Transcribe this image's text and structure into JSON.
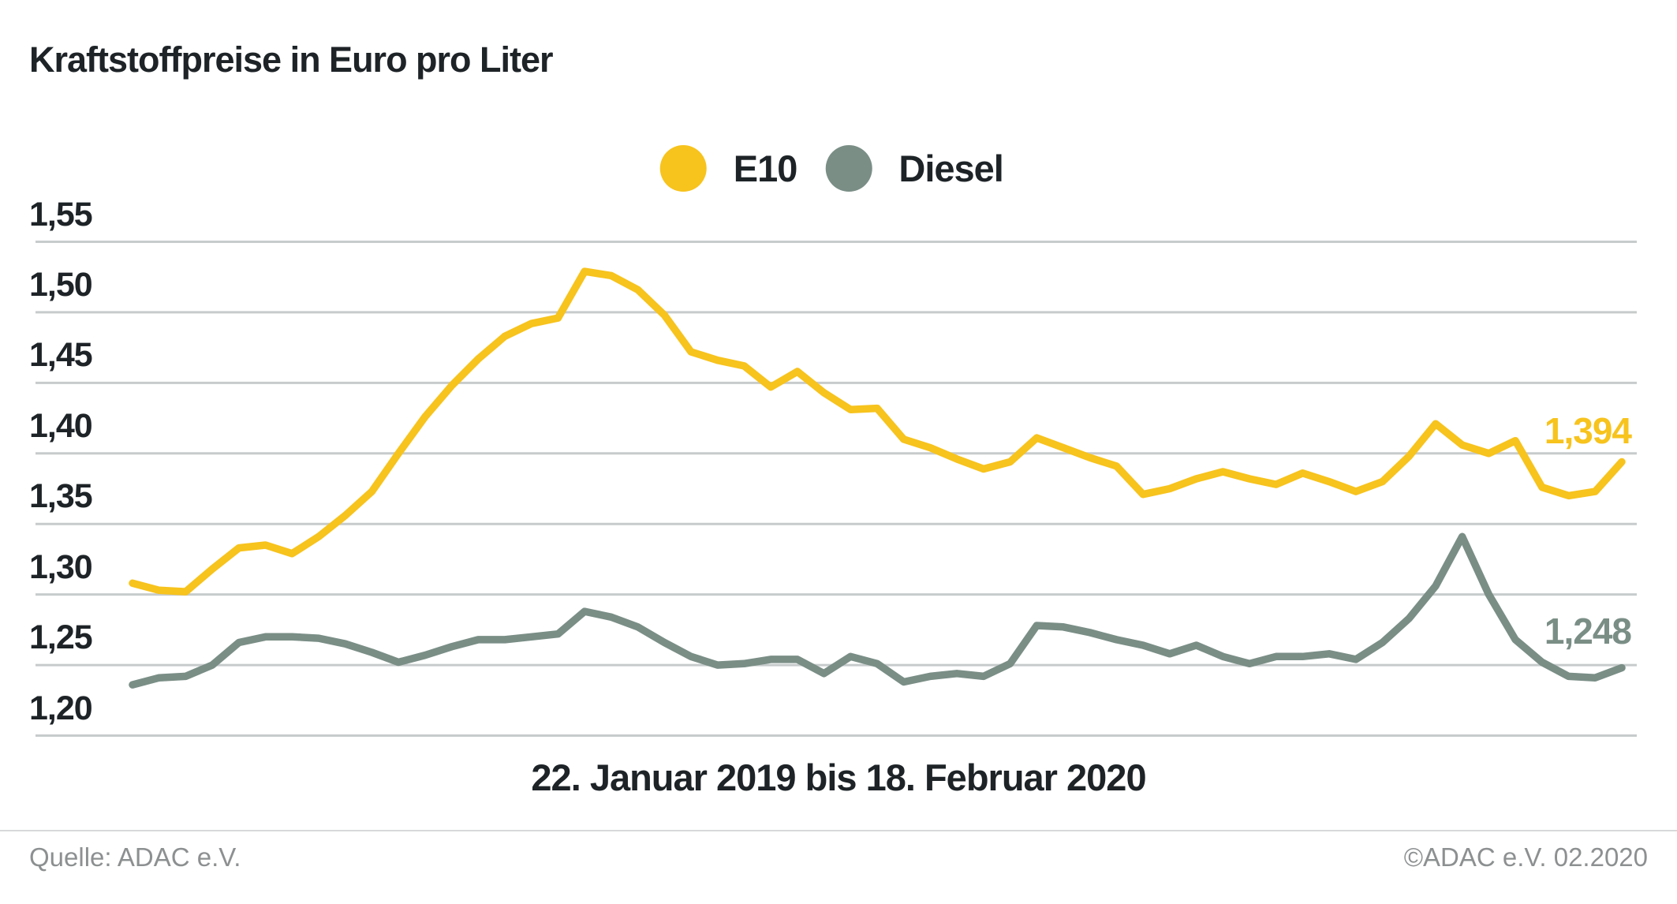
{
  "title": "Kraftstoffpreise in Euro pro Liter",
  "legend": {
    "items": [
      {
        "label": "E10",
        "color": "#f7c31d"
      },
      {
        "label": "Diesel",
        "color": "#7a8e86"
      }
    ]
  },
  "footer": {
    "source": "Quelle: ADAC e.V.",
    "copyright": "©ADAC e.V.  02.2020"
  },
  "chart_data": {
    "type": "line",
    "title": "Kraftstoffpreise in Euro pro Liter",
    "xlabel": "22. Januar 2019 bis 18. Februar 2020",
    "x_range_text": "22. Januar 2019 bis 18. Februar 2020",
    "x_unit": "weekly",
    "ylabel": "Euro pro Liter",
    "ylim": [
      1.2,
      1.55
    ],
    "grid": true,
    "legend_position": "top-center",
    "yticks": [
      {
        "value": 1.55,
        "label": "1,55"
      },
      {
        "value": 1.5,
        "label": "1,50"
      },
      {
        "value": 1.45,
        "label": "1,45"
      },
      {
        "value": 1.4,
        "label": "1,40"
      },
      {
        "value": 1.35,
        "label": "1,35"
      },
      {
        "value": 1.3,
        "label": "1,30"
      },
      {
        "value": 1.25,
        "label": "1,25"
      },
      {
        "value": 1.2,
        "label": "1,20"
      }
    ],
    "series": [
      {
        "name": "E10",
        "color": "#f7c31d",
        "end_label": "1,394",
        "end_value": 1.394,
        "values": [
          1.308,
          1.303,
          1.302,
          1.318,
          1.333,
          1.335,
          1.329,
          1.341,
          1.356,
          1.373,
          1.4,
          1.426,
          1.448,
          1.467,
          1.483,
          1.492,
          1.496,
          1.529,
          1.526,
          1.516,
          1.498,
          1.472,
          1.466,
          1.462,
          1.447,
          1.458,
          1.443,
          1.431,
          1.432,
          1.41,
          1.404,
          1.396,
          1.389,
          1.394,
          1.411,
          1.404,
          1.397,
          1.391,
          1.371,
          1.375,
          1.382,
          1.387,
          1.382,
          1.378,
          1.386,
          1.38,
          1.373,
          1.38,
          1.398,
          1.421,
          1.406,
          1.4,
          1.409,
          1.376,
          1.37,
          1.373,
          1.394
        ]
      },
      {
        "name": "Diesel",
        "color": "#7a8e86",
        "end_label": "1,248",
        "end_value": 1.248,
        "values": [
          1.236,
          1.241,
          1.242,
          1.25,
          1.266,
          1.27,
          1.27,
          1.269,
          1.265,
          1.259,
          1.252,
          1.257,
          1.263,
          1.268,
          1.268,
          1.27,
          1.272,
          1.288,
          1.284,
          1.277,
          1.266,
          1.256,
          1.25,
          1.251,
          1.254,
          1.254,
          1.244,
          1.256,
          1.251,
          1.238,
          1.242,
          1.244,
          1.242,
          1.251,
          1.278,
          1.277,
          1.273,
          1.268,
          1.264,
          1.258,
          1.264,
          1.256,
          1.251,
          1.256,
          1.256,
          1.258,
          1.254,
          1.266,
          1.283,
          1.306,
          1.341,
          1.3,
          1.268,
          1.252,
          1.242,
          1.241,
          1.248
        ]
      }
    ]
  }
}
